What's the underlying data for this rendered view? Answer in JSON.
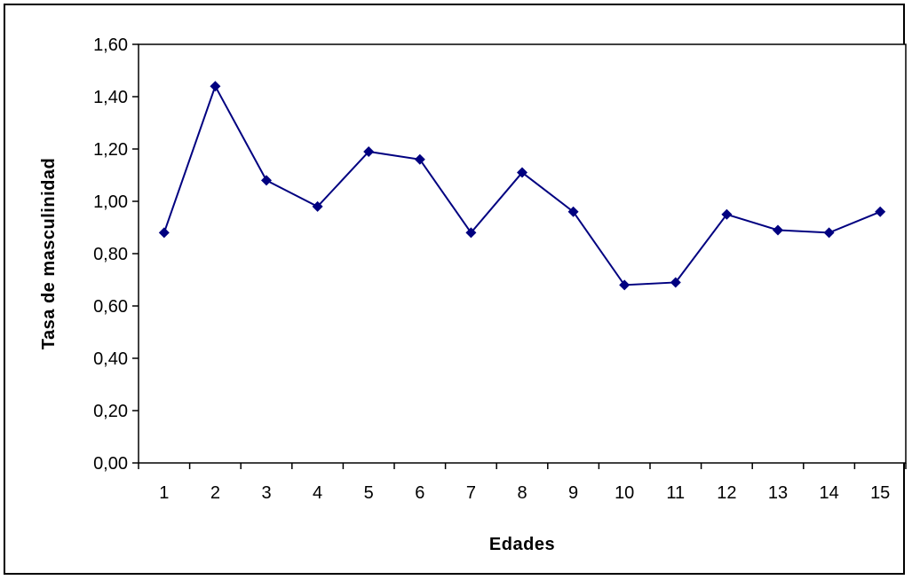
{
  "chart_data": {
    "type": "line",
    "title": "",
    "xlabel": "Edades",
    "ylabel": "Tasa de masculinidad",
    "x": [
      1,
      2,
      3,
      4,
      5,
      6,
      7,
      8,
      9,
      10,
      11,
      12,
      13,
      14,
      15
    ],
    "y_tick_labels": [
      "0,00",
      "0,20",
      "0,40",
      "0,60",
      "0,80",
      "1,00",
      "1,20",
      "1,40",
      "1,60"
    ],
    "ylim": [
      0,
      1.6
    ],
    "grid": false,
    "legend": "none",
    "series": [
      {
        "color": "#000080",
        "values": [
          0.88,
          1.44,
          1.08,
          0.98,
          1.19,
          1.16,
          0.88,
          1.11,
          0.96,
          0.68,
          0.69,
          0.95,
          0.89,
          0.88,
          0.96
        ]
      }
    ]
  }
}
